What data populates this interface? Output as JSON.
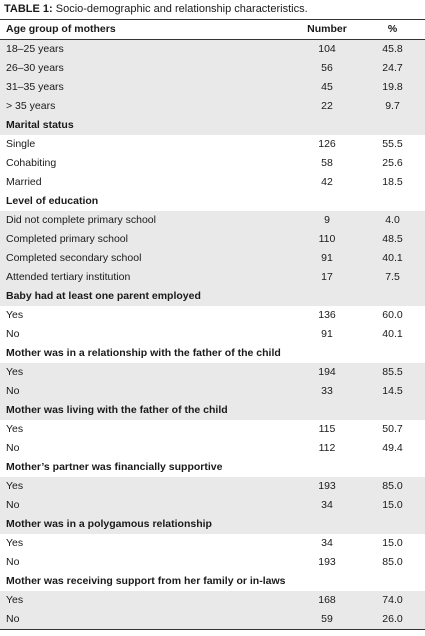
{
  "caption": {
    "label": "TABLE 1:",
    "text": " Socio-demographic and relationship characteristics."
  },
  "header": [
    "Age group of mothers",
    "Number",
    "%"
  ],
  "sections": [
    {
      "title": null,
      "rows": [
        [
          "18–25 years",
          "104",
          "45.8"
        ],
        [
          "26–30 years",
          "56",
          "24.7"
        ],
        [
          "31–35 years",
          "45",
          "19.8"
        ],
        [
          "> 35 years",
          "22",
          "9.7"
        ]
      ]
    },
    {
      "title": "Marital status",
      "rows": [
        [
          "Single",
          "126",
          "55.5"
        ],
        [
          "Cohabiting",
          "58",
          "25.6"
        ],
        [
          "Married",
          "42",
          "18.5"
        ]
      ]
    },
    {
      "title": "Level of education",
      "rows": [
        [
          "Did not complete primary school",
          "9",
          "4.0"
        ],
        [
          "Completed primary school",
          "110",
          "48.5"
        ],
        [
          "Completed secondary school",
          "91",
          "40.1"
        ],
        [
          "Attended tertiary institution",
          "17",
          "7.5"
        ]
      ]
    },
    {
      "title": "Baby had at least one parent employed",
      "rows": [
        [
          "Yes",
          "136",
          "60.0"
        ],
        [
          "No",
          "91",
          "40.1"
        ]
      ]
    },
    {
      "title": "Mother was in a relationship with the father of the child",
      "rows": [
        [
          "Yes",
          "194",
          "85.5"
        ],
        [
          "No",
          "33",
          "14.5"
        ]
      ]
    },
    {
      "title": "Mother was living with the father of the child",
      "rows": [
        [
          "Yes",
          "115",
          "50.7"
        ],
        [
          "No",
          "112",
          "49.4"
        ]
      ]
    },
    {
      "title": "Mother’s partner was financially supportive",
      "rows": [
        [
          "Yes",
          "193",
          "85.0"
        ],
        [
          "No",
          "34",
          "15.0"
        ]
      ]
    },
    {
      "title": "Mother was in a polygamous relationship",
      "rows": [
        [
          "Yes",
          "34",
          "15.0"
        ],
        [
          "No",
          "193",
          "85.0"
        ]
      ]
    },
    {
      "title": "Mother was receiving support from her family or in-laws",
      "rows": [
        [
          "Yes",
          "168",
          "74.0"
        ],
        [
          "No",
          "59",
          "26.0"
        ]
      ]
    }
  ]
}
